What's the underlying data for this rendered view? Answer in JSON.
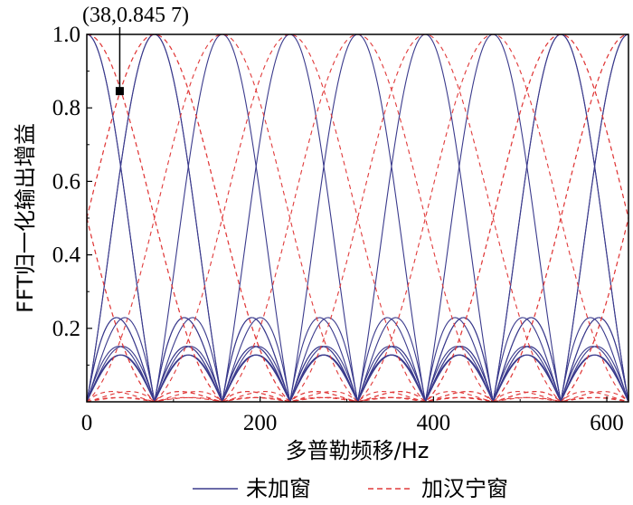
{
  "chart_data": {
    "type": "line",
    "xlabel": "多普勒频移/Hz",
    "ylabel": "FFT归一化输出增益",
    "xlim": [
      0,
      625
    ],
    "ylim": [
      0,
      1.0
    ],
    "x_ticks": [
      0,
      200,
      400,
      600
    ],
    "x_tick_labels": [
      "0",
      "200",
      "400",
      "600"
    ],
    "y_ticks": [
      0.2,
      0.4,
      0.6,
      0.8,
      1.0
    ],
    "y_tick_labels": [
      "0.2",
      "0.4",
      "0.6",
      "0.8",
      "1.0"
    ],
    "bin_spacing_hz": 78.125,
    "num_bins": 8,
    "series": [
      {
        "name": "未加窗",
        "window": "rectangular",
        "color": "#3a3a8c",
        "style": "solid"
      },
      {
        "name": "加汉宁窗",
        "window": "hanning",
        "color": "#e03a3a",
        "style": "dashed"
      }
    ],
    "annotation": {
      "text": "(38,0.845 7)",
      "x": 38,
      "y": 0.8457
    },
    "legend": {
      "placement": "bottom",
      "entries": [
        "未加窗",
        "加汉宁窗"
      ]
    }
  }
}
